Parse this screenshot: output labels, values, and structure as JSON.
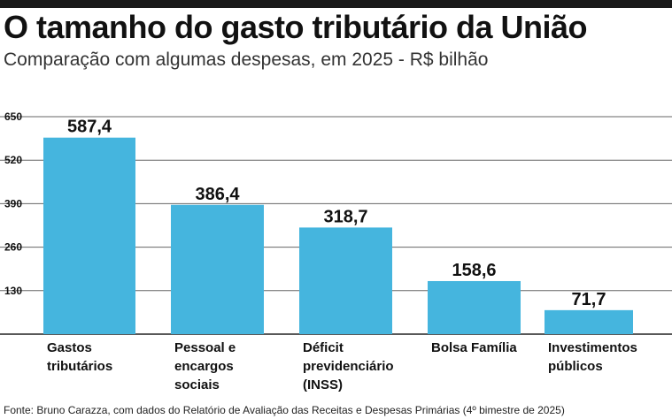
{
  "header": {
    "title": "O tamanho do gasto tributário da União",
    "subtitle": "Comparação com algumas despesas, em 2025 - R$ bilhão"
  },
  "source": "Fonte: Bruno Carazza, com dados do Relatório de Avaliação das Receitas e Despesas Primárias (4º bimestre de 2025)",
  "colors": {
    "bar": "#45b5de",
    "grid": "#666666",
    "axis": "#222222"
  },
  "chart_data": {
    "type": "bar",
    "title": "O tamanho do gasto tributário da União",
    "subtitle": "Comparação com algumas despesas, em 2025 - R$ bilhão",
    "xlabel": "",
    "ylabel": "",
    "ylim": [
      0,
      650
    ],
    "yticks": [
      130,
      260,
      390,
      520,
      650
    ],
    "ytick_labels": [
      "130",
      "260",
      "390",
      "520",
      "650"
    ],
    "grid": true,
    "categories": [
      [
        "Gastos",
        "tributários"
      ],
      [
        "Pessoal e",
        "encargos",
        "sociais"
      ],
      [
        "Déficit",
        "previdenciário",
        "(INSS)"
      ],
      [
        "Bolsa Família"
      ],
      [
        "Investimentos",
        "públicos"
      ]
    ],
    "values": [
      587.4,
      386.4,
      318.7,
      158.6,
      71.7
    ],
    "value_labels": [
      "587,4",
      "386,4",
      "318,7",
      "158,6",
      "71,7"
    ]
  }
}
